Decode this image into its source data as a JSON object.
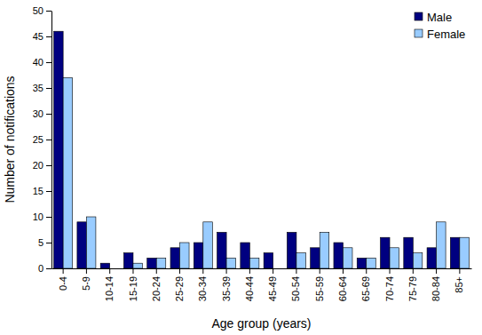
{
  "chart_data": {
    "type": "bar",
    "x_label": "Age group (years)",
    "y_label": "Number of notifications",
    "categories": [
      "0-4",
      "5-9",
      "10-14",
      "15-19",
      "20-24",
      "25-29",
      "30-34",
      "35-39",
      "40-44",
      "45-49",
      "50-54",
      "55-59",
      "60-64",
      "65-69",
      "70-74",
      "75-79",
      "80-84",
      "85+"
    ],
    "series": [
      {
        "name": "Male",
        "color": "#000080",
        "values": [
          46,
          9,
          1,
          3,
          2,
          4,
          5,
          7,
          5,
          3,
          7,
          4,
          5,
          2,
          6,
          6,
          4,
          6
        ]
      },
      {
        "name": "Female",
        "color": "#99ccff",
        "values": [
          37,
          10,
          0,
          1,
          2,
          5,
          9,
          2,
          2,
          0,
          3,
          7,
          4,
          2,
          4,
          3,
          9,
          6
        ]
      }
    ],
    "ylim": [
      0,
      50
    ],
    "yticks": [
      0,
      5,
      10,
      15,
      20,
      25,
      30,
      35,
      40,
      45,
      50
    ],
    "grid": false,
    "legend": "top-right"
  }
}
